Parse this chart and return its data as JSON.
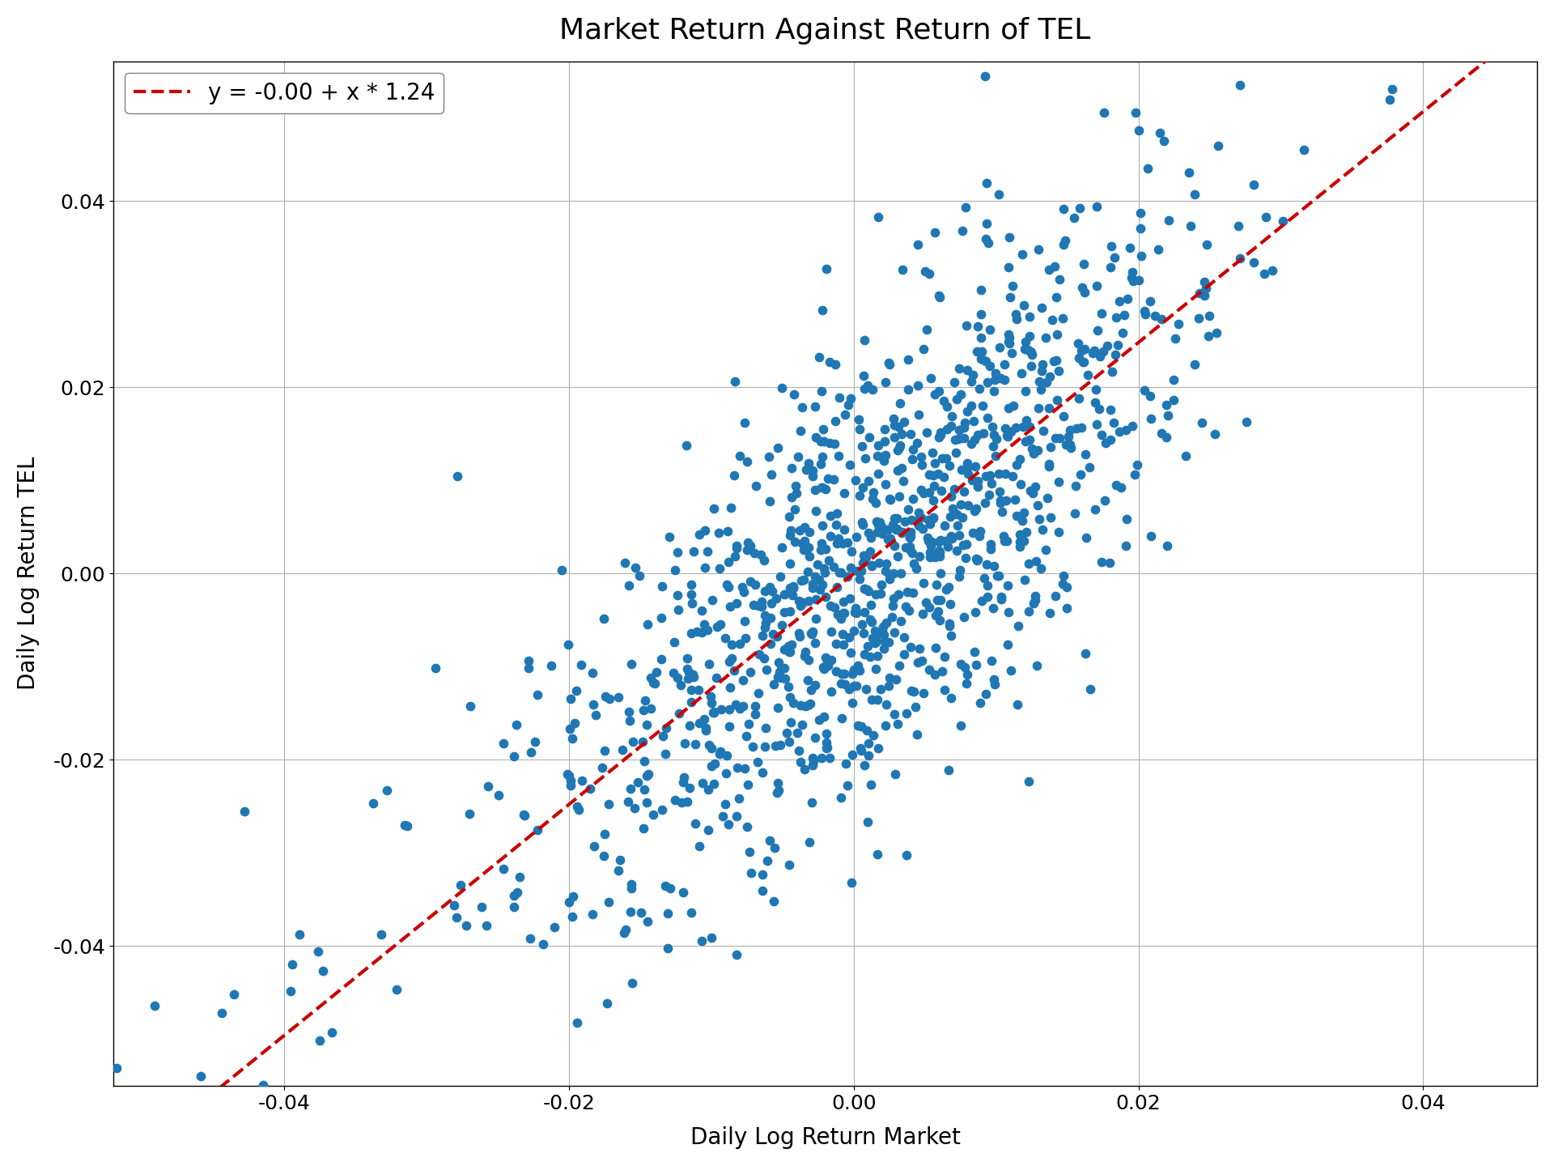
{
  "title": "Market Return Against Return of TEL",
  "xlabel": "Daily Log Return Market",
  "ylabel": "Daily Log Return TEL",
  "legend_label": "y = -0.00 + x * 1.24",
  "intercept": 0.0,
  "slope": 1.24,
  "xlim": [
    -0.052,
    0.048
  ],
  "ylim": [
    -0.055,
    0.055
  ],
  "scatter_color": "#1f77b4",
  "line_color": "#cc0000",
  "n_points": 1200,
  "seed": 7,
  "marker_size": 55,
  "title_fontsize": 26,
  "label_fontsize": 20,
  "tick_fontsize": 18,
  "legend_fontsize": 20,
  "background_color": "#ffffff",
  "grid_color": "#b0b0b0"
}
